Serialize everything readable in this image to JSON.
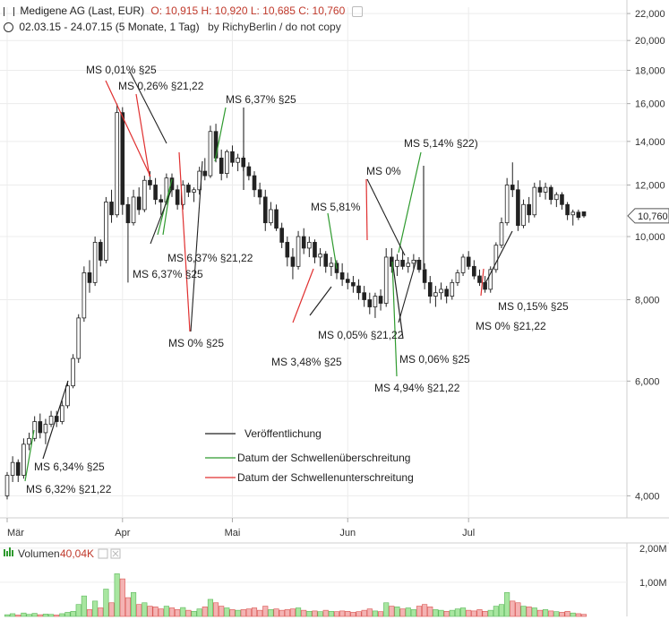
{
  "header": {
    "line1_name": "Medigene AG (Last, EUR)",
    "line1_ohlc": "O: 10,915  H: 10,920  L: 10,685  C: 10,760",
    "line2_range": "02.03.15 - 24.07.15 (5 Monate, 1 Tag)",
    "line2_author": "by RichyBerlin / do not copy"
  },
  "volume_panel": {
    "label": "Volumen",
    "value": "40,04K"
  },
  "legend": [
    {
      "label": "Veröffentlichung",
      "color": "#222222"
    },
    {
      "label": "Datum der Schwellenüberschreitung",
      "color": "#2e9a2e"
    },
    {
      "label": "Datum der Schwellenunterschreitung",
      "color": "#e03030"
    }
  ],
  "chart_data": {
    "type": "candlestick",
    "title": "Medigene AG (Last, EUR)",
    "y_scale": "log",
    "ylim": [
      3.7,
      22.5
    ],
    "y_ticks": [
      4,
      6,
      8,
      10,
      12,
      14,
      16,
      18,
      20,
      22
    ],
    "y_tick_labels": [
      "4,000",
      "6,000",
      "8,000",
      "10,000",
      "12,000",
      "14,000",
      "16,000",
      "18,000",
      "20,000",
      "22,000"
    ],
    "x_tick_labels": [
      "Mär",
      "Apr",
      "Mai",
      "Jun",
      "Jul"
    ],
    "x_tick_index": [
      0,
      21,
      41,
      62,
      84
    ],
    "last_price_label": "10,760",
    "candles": [
      [
        4.0,
        4.35,
        3.95,
        4.3
      ],
      [
        4.3,
        4.6,
        4.2,
        4.5
      ],
      [
        4.5,
        4.55,
        4.2,
        4.3
      ],
      [
        4.3,
        4.9,
        4.25,
        4.8
      ],
      [
        4.8,
        5.0,
        4.7,
        4.9
      ],
      [
        4.9,
        5.3,
        4.85,
        5.2
      ],
      [
        5.2,
        5.35,
        4.9,
        5.0
      ],
      [
        5.0,
        5.25,
        4.8,
        5.15
      ],
      [
        5.15,
        5.4,
        5.1,
        5.3
      ],
      [
        5.3,
        5.4,
        5.1,
        5.2
      ],
      [
        5.2,
        5.6,
        5.15,
        5.5
      ],
      [
        5.5,
        6.0,
        5.45,
        5.9
      ],
      [
        5.9,
        6.6,
        5.85,
        6.5
      ],
      [
        6.5,
        7.6,
        6.4,
        7.5
      ],
      [
        7.5,
        9.0,
        7.4,
        8.8
      ],
      [
        8.8,
        9.2,
        8.2,
        8.5
      ],
      [
        8.5,
        10.0,
        8.4,
        9.8
      ],
      [
        9.8,
        9.9,
        9.0,
        9.2
      ],
      [
        9.2,
        11.5,
        9.1,
        11.3
      ],
      [
        11.3,
        11.8,
        10.5,
        10.8
      ],
      [
        10.8,
        16.0,
        10.7,
        15.5
      ],
      [
        15.5,
        15.8,
        10.8,
        11.2
      ],
      [
        11.2,
        11.5,
        8.5,
        10.5
      ],
      [
        10.5,
        11.8,
        10.4,
        11.5
      ],
      [
        11.5,
        11.9,
        10.8,
        11.0
      ],
      [
        11.0,
        12.4,
        10.9,
        12.2
      ],
      [
        12.2,
        12.6,
        11.8,
        12.0
      ],
      [
        12.0,
        12.3,
        11.2,
        11.4
      ],
      [
        11.4,
        11.6,
        10.8,
        11.3
      ],
      [
        11.3,
        12.5,
        11.2,
        12.3
      ],
      [
        12.3,
        12.5,
        11.5,
        11.8
      ],
      [
        11.8,
        12.0,
        11.0,
        11.2
      ],
      [
        11.2,
        12.2,
        11.0,
        12.0
      ],
      [
        12.0,
        12.1,
        11.5,
        11.7
      ],
      [
        11.7,
        11.9,
        11.3,
        11.8
      ],
      [
        11.8,
        12.8,
        11.6,
        12.6
      ],
      [
        12.6,
        13.2,
        12.2,
        12.4
      ],
      [
        12.4,
        14.8,
        12.3,
        14.5
      ],
      [
        14.5,
        14.9,
        13.0,
        13.2
      ],
      [
        13.2,
        13.6,
        12.2,
        12.5
      ],
      [
        12.5,
        13.6,
        12.3,
        13.5
      ],
      [
        13.5,
        13.8,
        12.8,
        13.0
      ],
      [
        13.0,
        13.4,
        12.6,
        13.2
      ],
      [
        13.2,
        13.3,
        12.6,
        12.8
      ],
      [
        12.8,
        13.0,
        12.2,
        12.4
      ],
      [
        12.4,
        12.6,
        11.5,
        11.8
      ],
      [
        11.8,
        12.1,
        11.2,
        11.5
      ],
      [
        11.5,
        11.8,
        10.2,
        10.5
      ],
      [
        10.5,
        11.3,
        10.4,
        11.0
      ],
      [
        11.0,
        11.2,
        10.2,
        10.3
      ],
      [
        10.3,
        10.5,
        9.6,
        9.8
      ],
      [
        9.8,
        10.0,
        9.0,
        9.3
      ],
      [
        9.3,
        9.6,
        8.6,
        9.0
      ],
      [
        9.0,
        10.2,
        8.9,
        10.0
      ],
      [
        10.0,
        10.3,
        9.4,
        9.6
      ],
      [
        9.6,
        10.0,
        9.3,
        9.8
      ],
      [
        9.8,
        9.9,
        9.1,
        9.3
      ],
      [
        9.3,
        9.6,
        9.0,
        9.4
      ],
      [
        9.4,
        9.5,
        8.8,
        9.0
      ],
      [
        9.0,
        9.3,
        8.7,
        9.1
      ],
      [
        9.1,
        9.2,
        8.6,
        8.8
      ],
      [
        8.8,
        9.1,
        8.4,
        8.6
      ],
      [
        8.6,
        8.8,
        8.3,
        8.5
      ],
      [
        8.5,
        8.7,
        8.2,
        8.4
      ],
      [
        8.4,
        8.6,
        8.0,
        8.2
      ],
      [
        8.2,
        8.4,
        7.8,
        8.0
      ],
      [
        8.0,
        8.2,
        7.6,
        7.8
      ],
      [
        7.8,
        8.2,
        7.5,
        8.1
      ],
      [
        8.1,
        8.3,
        7.7,
        7.9
      ],
      [
        7.9,
        9.6,
        7.8,
        9.3
      ],
      [
        9.3,
        9.6,
        8.8,
        9.0
      ],
      [
        9.0,
        9.4,
        8.7,
        9.2
      ],
      [
        9.2,
        9.5,
        8.9,
        9.0
      ],
      [
        9.0,
        9.3,
        8.8,
        9.1
      ],
      [
        9.1,
        9.4,
        8.9,
        9.2
      ],
      [
        9.2,
        9.3,
        8.8,
        8.9
      ],
      [
        8.9,
        9.1,
        8.3,
        8.5
      ],
      [
        8.5,
        8.7,
        7.9,
        8.1
      ],
      [
        8.1,
        8.4,
        7.8,
        8.2
      ],
      [
        8.2,
        8.5,
        8.0,
        8.3
      ],
      [
        8.3,
        8.4,
        7.9,
        8.1
      ],
      [
        8.1,
        8.6,
        8.0,
        8.5
      ],
      [
        8.5,
        8.9,
        8.4,
        8.8
      ],
      [
        8.8,
        9.4,
        8.7,
        9.3
      ],
      [
        9.3,
        9.5,
        8.9,
        9.0
      ],
      [
        9.0,
        9.2,
        8.6,
        8.7
      ],
      [
        8.7,
        8.9,
        8.4,
        8.5
      ],
      [
        8.5,
        8.7,
        8.2,
        8.3
      ],
      [
        8.3,
        9.0,
        8.2,
        8.9
      ],
      [
        8.9,
        9.8,
        8.8,
        9.7
      ],
      [
        9.7,
        10.7,
        9.6,
        10.5
      ],
      [
        10.5,
        12.3,
        10.4,
        12.0
      ],
      [
        12.0,
        13.0,
        11.5,
        11.8
      ],
      [
        11.8,
        12.2,
        10.2,
        10.4
      ],
      [
        10.4,
        11.4,
        10.3,
        11.2
      ],
      [
        11.2,
        11.5,
        10.5,
        10.8
      ],
      [
        10.8,
        12.1,
        10.7,
        11.9
      ],
      [
        11.9,
        12.2,
        11.5,
        11.7
      ],
      [
        11.7,
        12.1,
        11.4,
        11.9
      ],
      [
        11.9,
        12.0,
        11.2,
        11.4
      ],
      [
        11.4,
        11.7,
        11.1,
        11.6
      ],
      [
        11.6,
        11.7,
        11.0,
        11.2
      ],
      [
        11.2,
        11.3,
        10.6,
        10.8
      ],
      [
        10.8,
        11.0,
        10.4,
        10.9
      ],
      [
        10.9,
        11.0,
        10.6,
        10.7
      ],
      [
        10.915,
        10.92,
        10.685,
        10.76
      ]
    ],
    "volume_ticks": [
      "2,00M",
      "1,00M"
    ],
    "volumes": [
      0.05,
      0.08,
      0.04,
      0.1,
      0.06,
      0.09,
      0.05,
      0.07,
      0.06,
      0.04,
      0.08,
      0.12,
      0.15,
      0.35,
      0.6,
      0.2,
      0.45,
      0.25,
      0.8,
      0.4,
      1.25,
      1.1,
      0.55,
      0.7,
      0.35,
      0.4,
      0.3,
      0.28,
      0.22,
      0.3,
      0.25,
      0.2,
      0.26,
      0.18,
      0.15,
      0.22,
      0.28,
      0.5,
      0.4,
      0.3,
      0.25,
      0.2,
      0.18,
      0.2,
      0.22,
      0.25,
      0.18,
      0.3,
      0.2,
      0.22,
      0.18,
      0.2,
      0.22,
      0.25,
      0.18,
      0.15,
      0.16,
      0.14,
      0.18,
      0.15,
      0.14,
      0.16,
      0.15,
      0.12,
      0.14,
      0.18,
      0.22,
      0.16,
      0.14,
      0.4,
      0.3,
      0.28,
      0.22,
      0.25,
      0.2,
      0.3,
      0.35,
      0.28,
      0.2,
      0.18,
      0.15,
      0.18,
      0.22,
      0.25,
      0.18,
      0.16,
      0.2,
      0.15,
      0.18,
      0.3,
      0.35,
      0.7,
      0.45,
      0.4,
      0.3,
      0.28,
      0.25,
      0.18,
      0.2,
      0.16,
      0.14,
      0.12,
      0.15,
      0.1,
      0.08,
      0.06
    ],
    "annotations": [
      {
        "text": "MS 0,01% §25",
        "anchor_index": 31,
        "line_color": "#e03030",
        "kind": "red"
      },
      {
        "text": "MS 0,26% §21,22",
        "anchor_index": 31,
        "line_color": "#e03030",
        "kind": "red"
      },
      {
        "text": "MS 6,37% §25",
        "anchor_index": 43,
        "line_color": "#2e9a2e",
        "kind": "green"
      },
      {
        "text": "MS 6,37% §21,22",
        "anchor_index": 31,
        "line_color": "#2e9a2e",
        "kind": "green"
      },
      {
        "text": "MS 6,37% §25",
        "anchor_index": 32,
        "line_color": "#2e9a2e",
        "kind": "green"
      },
      {
        "text": "MS 0% §25",
        "anchor_index": 37,
        "line_color": "#e03030",
        "kind": "red"
      },
      {
        "text": "MS 5,81%",
        "anchor_index": 66,
        "line_color": "#2e9a2e",
        "kind": "green"
      },
      {
        "text": "MS 0%",
        "anchor_index": 73,
        "line_color": "#e03030",
        "kind": "red"
      },
      {
        "text": "MS 5,14% §22)",
        "anchor_index": 78,
        "line_color": "#2e9a2e",
        "kind": "green"
      },
      {
        "text": "MS 0,05% §21,22",
        "anchor_index": 62,
        "line_color": "#222222",
        "kind": "black"
      },
      {
        "text": "MS 3,48% §25",
        "anchor_index": 61,
        "line_color": "#e03030",
        "kind": "red"
      },
      {
        "text": "MS 0,06% §25",
        "anchor_index": 78,
        "line_color": "#222222",
        "kind": "black"
      },
      {
        "text": "MS 4,94% §21,22",
        "anchor_index": 77,
        "line_color": "#2e9a2e",
        "kind": "green"
      },
      {
        "text": "MS 0,15% §25",
        "anchor_index": 95,
        "line_color": "#222222",
        "kind": "black"
      },
      {
        "text": "MS 0% §21,22",
        "anchor_index": 95,
        "line_color": "#e03030",
        "kind": "red"
      },
      {
        "text": "MS 6,34% §25",
        "anchor_index": 12,
        "line_color": "#222222",
        "kind": "black"
      },
      {
        "text": "MS 6,32% §21,22",
        "anchor_index": 6,
        "line_color": "#2e9a2e",
        "kind": "green"
      }
    ]
  }
}
